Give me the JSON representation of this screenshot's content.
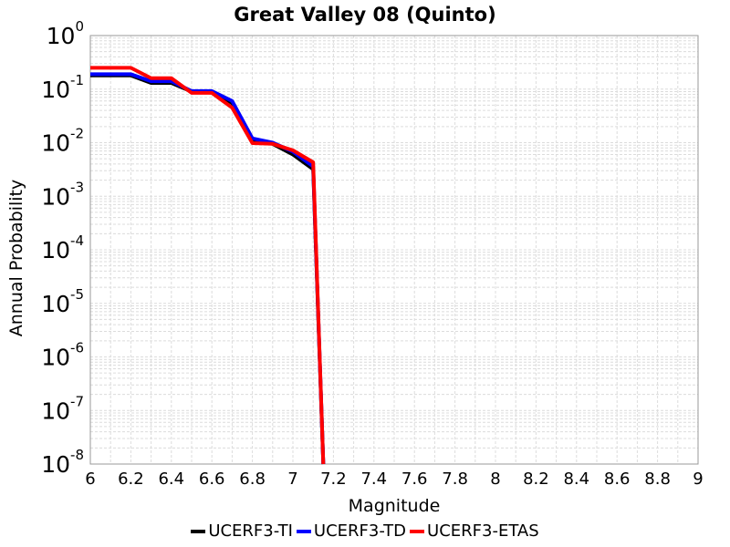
{
  "chart_data": {
    "type": "line",
    "title": "Great Valley 08 (Quinto)",
    "xlabel": "Magnitude",
    "ylabel": "Annual Probability",
    "xlim": [
      6,
      9
    ],
    "ylim_exponents": [
      -8,
      0
    ],
    "yscale": "log",
    "grid": true,
    "legend_position": "bottom",
    "x_ticks": [
      "6",
      "6.2",
      "6.4",
      "6.6",
      "6.8",
      "7",
      "7.2",
      "7.4",
      "7.6",
      "7.8",
      "8",
      "8.2",
      "8.4",
      "8.6",
      "8.8",
      "9"
    ],
    "y_tick_exponents": [
      "0",
      "-1",
      "-2",
      "-3",
      "-4",
      "-5",
      "-6",
      "-7",
      "-8"
    ],
    "y_tick_base": "10",
    "series": [
      {
        "name": "UCERF3-TI",
        "color": "#000000",
        "x": [
          6.0,
          6.1,
          6.2,
          6.3,
          6.4,
          6.5,
          6.6,
          6.7,
          6.8,
          6.9,
          7.0,
          7.1,
          7.15
        ],
        "y": [
          0.18,
          0.18,
          0.18,
          0.13,
          0.13,
          0.09,
          0.09,
          0.055,
          0.011,
          0.0095,
          0.006,
          0.0032,
          1e-08
        ]
      },
      {
        "name": "UCERF3-TD",
        "color": "#0000ff",
        "x": [
          6.0,
          6.1,
          6.2,
          6.3,
          6.4,
          6.5,
          6.6,
          6.7,
          6.8,
          6.9,
          7.0,
          7.1,
          7.15
        ],
        "y": [
          0.19,
          0.19,
          0.19,
          0.14,
          0.14,
          0.092,
          0.092,
          0.06,
          0.012,
          0.01,
          0.0068,
          0.0036,
          1e-08
        ]
      },
      {
        "name": "UCERF3-ETAS",
        "color": "#ff0000",
        "x": [
          6.0,
          6.1,
          6.2,
          6.3,
          6.4,
          6.5,
          6.6,
          6.7,
          6.8,
          6.9,
          7.0,
          7.1,
          7.15
        ],
        "y": [
          0.25,
          0.25,
          0.25,
          0.16,
          0.16,
          0.085,
          0.085,
          0.045,
          0.0098,
          0.0095,
          0.0072,
          0.0043,
          1e-08
        ]
      }
    ]
  }
}
